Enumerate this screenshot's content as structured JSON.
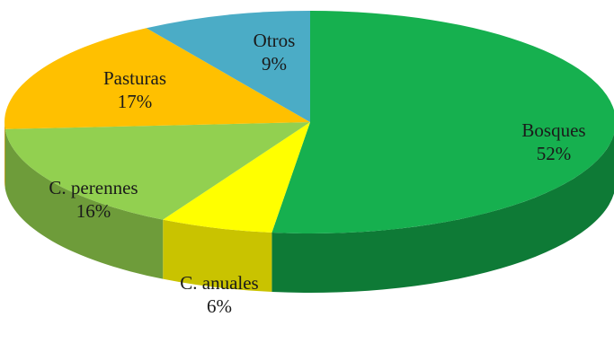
{
  "chart_data": {
    "type": "pie",
    "style": "3d",
    "slices": [
      {
        "name": "Bosques",
        "value": 52,
        "label": "52%",
        "color": "#16b04f",
        "side": "#0e7a36"
      },
      {
        "name": "C. anuales",
        "value": 6,
        "label": "6%",
        "color": "#ffff00",
        "side": "#c9c300"
      },
      {
        "name": "C. perennes",
        "value": 16,
        "label": "16%",
        "color": "#92d050",
        "side": "#6e9c3a"
      },
      {
        "name": "Pasturas",
        "value": 17,
        "label": "17%",
        "color": "#ffc000",
        "side": "#c69200"
      },
      {
        "name": "Otros",
        "value": 9,
        "label": "9%",
        "color": "#4bacc6",
        "side": "#2f7f96"
      }
    ]
  }
}
